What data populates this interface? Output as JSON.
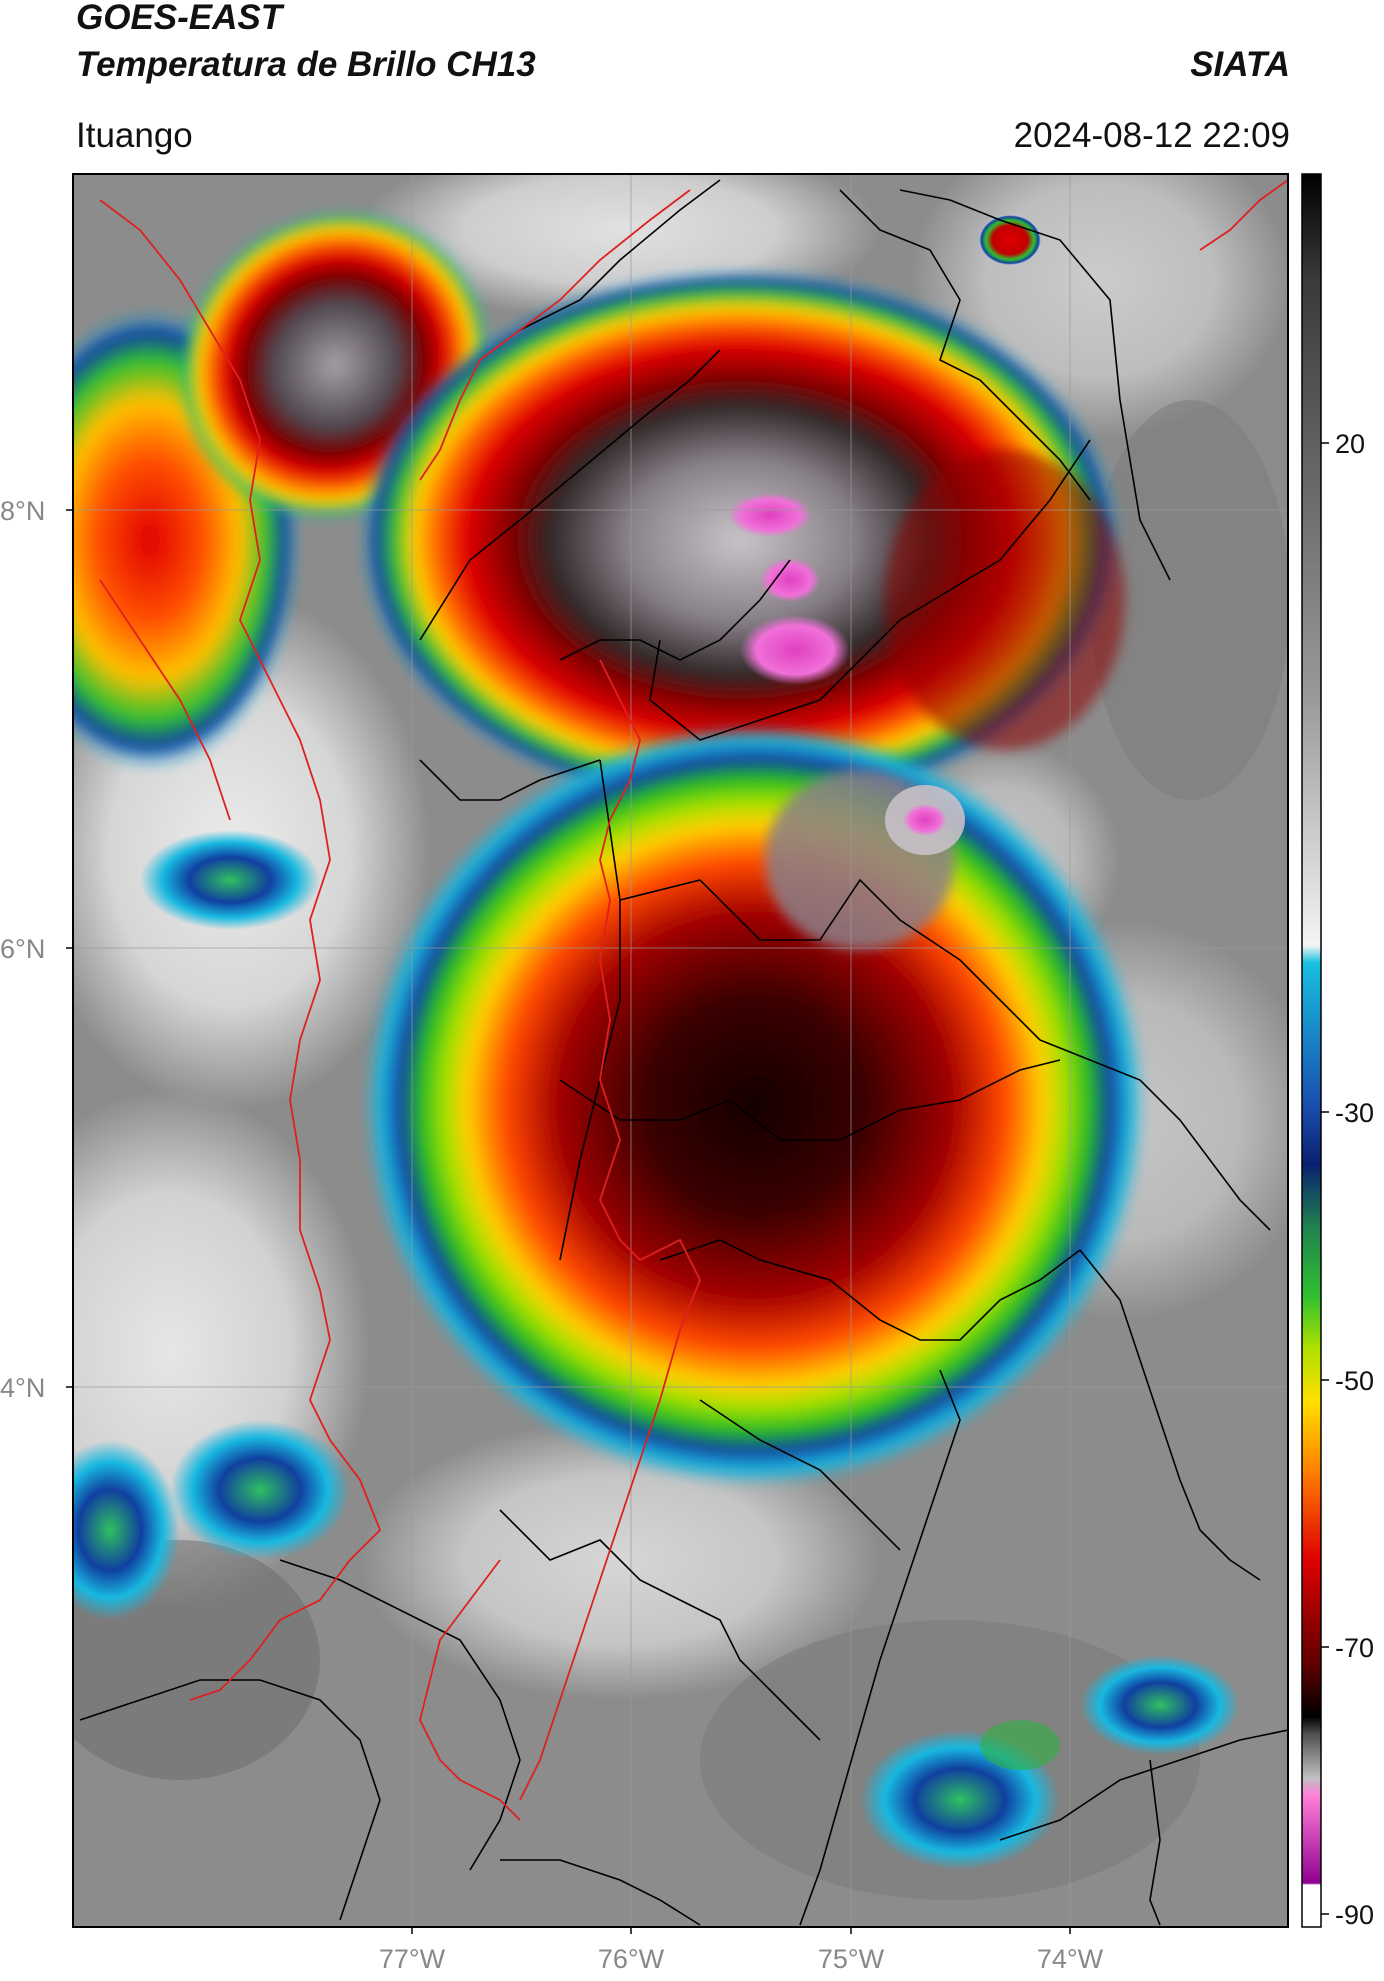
{
  "header": {
    "satellite": "GOES-EAST",
    "product": "Temperatura de Brillo CH13",
    "org": "SIATA",
    "location": "Ituango",
    "datetime": "2024-08-12 22:09"
  },
  "axes": {
    "lat_ticks": [
      "8°N",
      "6°N",
      "4°N"
    ],
    "lon_ticks": [
      "77°W",
      "76°W",
      "75°W",
      "74°W"
    ]
  },
  "colorbar": {
    "ticks": [
      "20",
      "-30",
      "-50",
      "-70",
      "-90"
    ],
    "colors": {
      "warm_gray": "#8a8a8a",
      "light_gray": "#f2f2f2",
      "cyan": "#18c0e0",
      "blue": "#1030a0",
      "green": "#30c030",
      "yellow_green": "#b0e000",
      "yellow": "#ffe000",
      "orange": "#ff7000",
      "red": "#e00000",
      "dark_red": "#600000",
      "black": "#000000",
      "pink": "#ff60d0",
      "purple": "#900090",
      "white": "#ffffff"
    }
  },
  "map_colors": {
    "border_national": "#e02020",
    "border_admin": "#000000",
    "gridline": "#999999"
  }
}
